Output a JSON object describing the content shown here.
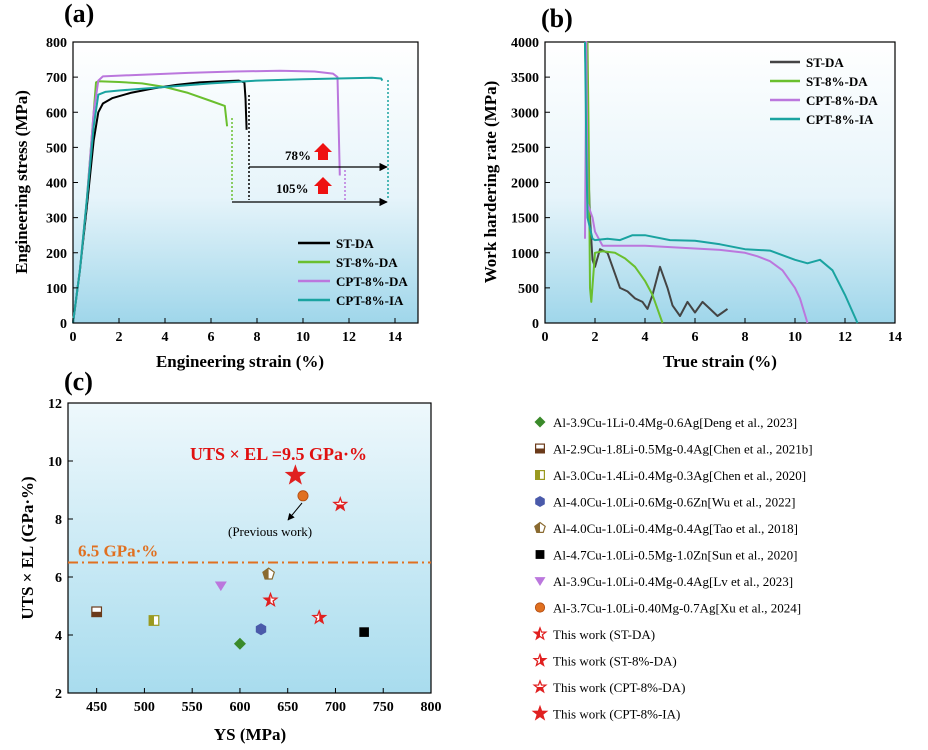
{
  "chart_data": [
    {
      "panel": "(a)",
      "type": "line",
      "xlabel": "Engineering strain (%)",
      "ylabel": "Engineering  stress (MPa)",
      "xlim": [
        0,
        15
      ],
      "ylim": [
        0,
        800
      ],
      "xticks": [
        "0",
        "2",
        "4",
        "6",
        "8",
        "10",
        "12",
        "14"
      ],
      "yticks": [
        "0",
        "100",
        "200",
        "300",
        "400",
        "500",
        "600",
        "700",
        "800"
      ],
      "legend_position": "lower-right",
      "annotations": [
        "78%",
        "105%"
      ],
      "series": [
        {
          "name": "ST-DA",
          "color": "#000000",
          "x": [
            0,
            0.3,
            0.6,
            0.9,
            1.1,
            1.3,
            1.7,
            2.5,
            3.5,
            4.5,
            5.5,
            6.5,
            7.2,
            7.45,
            7.5,
            7.55
          ],
          "y": [
            0,
            150,
            330,
            520,
            600,
            625,
            640,
            655,
            668,
            678,
            685,
            688,
            690,
            685,
            640,
            550
          ]
        },
        {
          "name": "ST-8%-DA",
          "color": "#6abf2e",
          "x": [
            0,
            0.3,
            0.6,
            0.9,
            1.0,
            1.1,
            2.0,
            3.0,
            4.0,
            5.0,
            6.0,
            6.6,
            6.7
          ],
          "y": [
            0,
            150,
            350,
            600,
            685,
            688,
            686,
            682,
            672,
            655,
            632,
            618,
            560
          ]
        },
        {
          "name": "CPT-8%-DA",
          "color": "#bb77dd",
          "x": [
            0,
            0.3,
            0.6,
            0.9,
            1.1,
            1.3,
            3.0,
            5.0,
            7.0,
            9.0,
            10.5,
            11.3,
            11.5,
            11.6
          ],
          "y": [
            0,
            150,
            350,
            600,
            690,
            702,
            707,
            712,
            716,
            718,
            716,
            710,
            700,
            420
          ]
        },
        {
          "name": "CPT-8%-IA",
          "color": "#1aa3a0",
          "x": [
            0,
            0.3,
            0.6,
            0.9,
            1.1,
            1.4,
            2.0,
            4.0,
            6.0,
            8.0,
            10.0,
            12.0,
            13.0,
            13.4,
            13.45
          ],
          "y": [
            0,
            150,
            350,
            560,
            650,
            658,
            662,
            672,
            682,
            690,
            694,
            697,
            698,
            696,
            690
          ]
        }
      ]
    },
    {
      "panel": "(b)",
      "type": "line",
      "xlabel": "True strain (%)",
      "ylabel": "Work hardering rate (MPa)",
      "xlim": [
        0,
        14
      ],
      "ylim": [
        0,
        4000
      ],
      "xticks": [
        "0",
        "2",
        "4",
        "6",
        "8",
        "10",
        "12",
        "14"
      ],
      "yticks": [
        "0",
        "500",
        "1000",
        "1500",
        "2000",
        "2500",
        "3000",
        "3500",
        "4000"
      ],
      "legend_position": "top-right",
      "series": [
        {
          "name": "ST-DA",
          "color": "#444444",
          "x": [
            1.6,
            1.7,
            1.8,
            1.9,
            2.0,
            2.2,
            2.5,
            2.8,
            3.0,
            3.3,
            3.6,
            3.9,
            4.1,
            4.3,
            4.6,
            4.9,
            5.1,
            5.4,
            5.7,
            6.0,
            6.3,
            6.6,
            6.9,
            7.1,
            7.3
          ],
          "y": [
            4000,
            2500,
            1500,
            900,
            800,
            1050,
            1000,
            700,
            500,
            450,
            350,
            300,
            200,
            400,
            800,
            500,
            250,
            100,
            300,
            150,
            300,
            200,
            100,
            150,
            200
          ]
        },
        {
          "name": "ST-8%-DA",
          "color": "#6abf2e",
          "x": [
            1.7,
            1.75,
            1.8,
            1.85,
            2.0,
            2.3,
            2.8,
            3.2,
            3.6,
            4.0,
            4.3,
            4.5,
            4.7
          ],
          "y": [
            4000,
            2500,
            500,
            300,
            1000,
            1020,
            1000,
            920,
            800,
            600,
            400,
            200,
            0
          ]
        },
        {
          "name": "CPT-8%-DA",
          "color": "#bb77dd",
          "x": [
            1.6,
            1.65,
            1.7,
            1.9,
            2.0,
            2.3,
            3.0,
            4.0,
            5.0,
            6.0,
            7.0,
            8.0,
            8.5,
            9.0,
            9.5,
            10.0,
            10.2,
            10.5
          ],
          "y": [
            1200,
            4000,
            1700,
            1500,
            1300,
            1100,
            1100,
            1100,
            1080,
            1060,
            1040,
            1000,
            950,
            880,
            750,
            500,
            350,
            0
          ]
        },
        {
          "name": "CPT-8%-IA",
          "color": "#1aa3a0",
          "x": [
            1.6,
            1.65,
            1.7,
            1.9,
            2.0,
            2.5,
            3.0,
            3.5,
            4.0,
            5.0,
            6.0,
            7.0,
            8.0,
            9.0,
            10.0,
            10.5,
            11.0,
            11.5,
            12.0,
            12.5
          ],
          "y": [
            4000,
            2500,
            1500,
            1200,
            1180,
            1200,
            1180,
            1250,
            1250,
            1180,
            1170,
            1120,
            1050,
            1030,
            900,
            850,
            900,
            750,
            400,
            0
          ]
        }
      ]
    },
    {
      "panel": "(c)",
      "type": "scatter",
      "xlabel": "YS (MPa)",
      "ylabel": "UTS × EL (GPa·%)",
      "xlim": [
        420,
        800
      ],
      "ylim": [
        2,
        12
      ],
      "xticks": [
        "450",
        "500",
        "550",
        "600",
        "650",
        "700",
        "750",
        "800"
      ],
      "yticks": [
        "2",
        "4",
        "6",
        "8",
        "10",
        "12"
      ],
      "reference_line": {
        "label": "6.5 GPa·%",
        "y": 6.5,
        "color": "#e07020"
      },
      "annotations": [
        "UTS × EL =9.5 GPa·%",
        "(Previous work)"
      ],
      "points": [
        {
          "name": "Al-3.9Cu-1Li-0.4Mg-0.6Ag[Deng et al., 2023]",
          "x": 600,
          "y": 3.7,
          "marker": "diamond",
          "color": "#3a8a2a"
        },
        {
          "name": "Al-2.9Cu-1.8Li-0.5Mg-0.4Ag[Chen et al., 2021b]",
          "x": 450,
          "y": 4.8,
          "marker": "square-half-bottom",
          "color": "#6b3a1a"
        },
        {
          "name": "Al-3.0Cu-1.4Li-0.4Mg-0.3Ag[Chen et al., 2020]",
          "x": 510,
          "y": 4.5,
          "marker": "square-half-left",
          "color": "#9a9a20"
        },
        {
          "name": "Al-4.0Cu-1.0Li-0.6Mg-0.6Zn[Wu et al., 2022]",
          "x": 622,
          "y": 4.2,
          "marker": "hexagon",
          "color": "#4a5aaa"
        },
        {
          "name": "Al-4.0Cu-1.0Li-0.4Mg-0.4Ag[Tao et al., 2018]",
          "x": 630,
          "y": 6.1,
          "marker": "pentagon-half",
          "color": "#8a6a30"
        },
        {
          "name": "Al-4.7Cu-1.0Li-0.5Mg-1.0Zn[Sun et al., 2020]",
          "x": 730,
          "y": 4.1,
          "marker": "square",
          "color": "#000000"
        },
        {
          "name": "Al-3.9Cu-1.0Li-0.4Mg-0.4Ag[Lv et al., 2023]",
          "x": 580,
          "y": 5.7,
          "marker": "triangle-down",
          "color": "#bb77dd"
        },
        {
          "name": "Al-3.7Cu-1.0Li-0.40Mg-0.7Ag[Xu et al., 2024]",
          "x": 666,
          "y": 8.8,
          "marker": "circle",
          "color": "#e07020"
        },
        {
          "name": "This work (ST-DA)",
          "x": 632,
          "y": 5.2,
          "marker": "star-half-left",
          "color": "#e02020"
        },
        {
          "name": "This work (ST-8%-DA)",
          "x": 683,
          "y": 4.6,
          "marker": "star-half-right",
          "color": "#e02020"
        },
        {
          "name": "This work (CPT-8%-DA)",
          "x": 705,
          "y": 8.5,
          "marker": "star-half-bottom",
          "color": "#e02020"
        },
        {
          "name": "This work (CPT-8%-IA)",
          "x": 658,
          "y": 9.5,
          "marker": "star-filled",
          "color": "#e02020"
        }
      ]
    }
  ]
}
